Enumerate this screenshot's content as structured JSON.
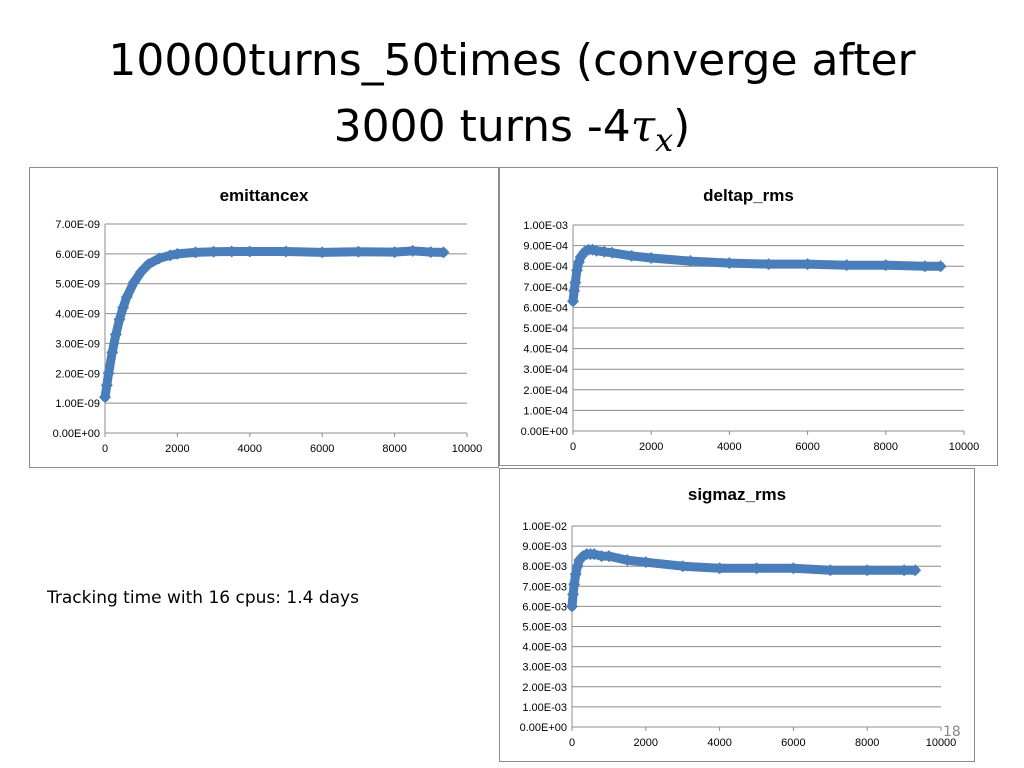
{
  "slide": {
    "title_line1": "10000turns_50times (converge after",
    "title_line2_prefix": "3000 turns -4",
    "title_symbol": "τ",
    "title_subscript": "x",
    "title_line2_suffix": ")",
    "note": "Tracking time with 16 cpus: 1.4 days",
    "page_number": "18"
  },
  "colors": {
    "series": "#4a7ebb",
    "grid": "#8c8c8c",
    "axis": "#8c8c8c"
  },
  "chart_data": [
    {
      "type": "scatter",
      "title": "emittancex",
      "xlabel": "",
      "ylabel": "",
      "xlim": [
        0,
        10000
      ],
      "ylim": [
        0,
        7e-09
      ],
      "x_ticks": [
        "0",
        "2000",
        "4000",
        "6000",
        "8000",
        "10000"
      ],
      "y_ticks": [
        "0.00E+00",
        "1.00E-09",
        "2.00E-09",
        "3.00E-09",
        "4.00E-09",
        "5.00E-09",
        "6.00E-09",
        "7.00E-09"
      ],
      "grid": true,
      "legend": false,
      "series": [
        {
          "x": [
            0,
            50,
            100,
            200,
            300,
            400,
            500,
            600,
            800,
            1000,
            1200,
            1500,
            1800,
            2000,
            2500,
            3000,
            3500,
            4000,
            5000,
            6000,
            7000,
            8000,
            8500,
            9000,
            9350
          ],
          "values": [
            1.2e-09,
            1.6e-09,
            2e-09,
            2.7e-09,
            3.3e-09,
            3.8e-09,
            4.2e-09,
            4.55e-09,
            5.05e-09,
            5.4e-09,
            5.65e-09,
            5.85e-09,
            5.95e-09,
            6e-09,
            6.05e-09,
            6.07e-09,
            6.08e-09,
            6.08e-09,
            6.08e-09,
            6.05e-09,
            6.07e-09,
            6.06e-09,
            6.1e-09,
            6.06e-09,
            6.05e-09
          ]
        }
      ]
    },
    {
      "type": "scatter",
      "title": "deltap_rms",
      "xlabel": "",
      "ylabel": "",
      "xlim": [
        0,
        10000
      ],
      "ylim": [
        0,
        0.001
      ],
      "x_ticks": [
        "0",
        "2000",
        "4000",
        "6000",
        "8000",
        "10000"
      ],
      "y_ticks": [
        "0.00E+00",
        "1.00E-04",
        "2.00E-04",
        "3.00E-04",
        "4.00E-04",
        "5.00E-04",
        "6.00E-04",
        "7.00E-04",
        "8.00E-04",
        "9.00E-04",
        "1.00E-03"
      ],
      "grid": true,
      "legend": false,
      "series": [
        {
          "x": [
            0,
            30,
            60,
            100,
            150,
            200,
            300,
            400,
            500,
            600,
            800,
            1000,
            1500,
            2000,
            3000,
            4000,
            5000,
            6000,
            7000,
            8000,
            9000,
            9400
          ],
          "values": [
            0.00063,
            0.00068,
            0.00072,
            0.00078,
            0.00082,
            0.000845,
            0.00087,
            0.00088,
            0.00088,
            0.000875,
            0.00087,
            0.000865,
            0.00085,
            0.00084,
            0.000825,
            0.000815,
            0.00081,
            0.00081,
            0.000805,
            0.000805,
            0.0008,
            0.0008
          ]
        }
      ]
    },
    {
      "type": "scatter",
      "title": "sigmaz_rms",
      "xlabel": "",
      "ylabel": "",
      "xlim": [
        0,
        10000
      ],
      "ylim": [
        0,
        0.01
      ],
      "x_ticks": [
        "0",
        "2000",
        "4000",
        "6000",
        "8000",
        "10000"
      ],
      "y_ticks": [
        "0.00E+00",
        "1.00E-03",
        "2.00E-03",
        "3.00E-03",
        "4.00E-03",
        "5.00E-03",
        "6.00E-03",
        "7.00E-03",
        "8.00E-03",
        "9.00E-03",
        "1.00E-02"
      ],
      "grid": true,
      "legend": false,
      "series": [
        {
          "x": [
            0,
            30,
            60,
            100,
            150,
            200,
            300,
            400,
            500,
            600,
            800,
            1000,
            1500,
            2000,
            3000,
            4000,
            5000,
            6000,
            7000,
            8000,
            9000,
            9300
          ],
          "values": [
            0.006,
            0.0066,
            0.0071,
            0.0076,
            0.008,
            0.0083,
            0.0085,
            0.0086,
            0.0086,
            0.0086,
            0.0085,
            0.0085,
            0.0083,
            0.0082,
            0.008,
            0.0079,
            0.0079,
            0.0079,
            0.0078,
            0.0078,
            0.0078,
            0.0078
          ]
        }
      ]
    }
  ]
}
